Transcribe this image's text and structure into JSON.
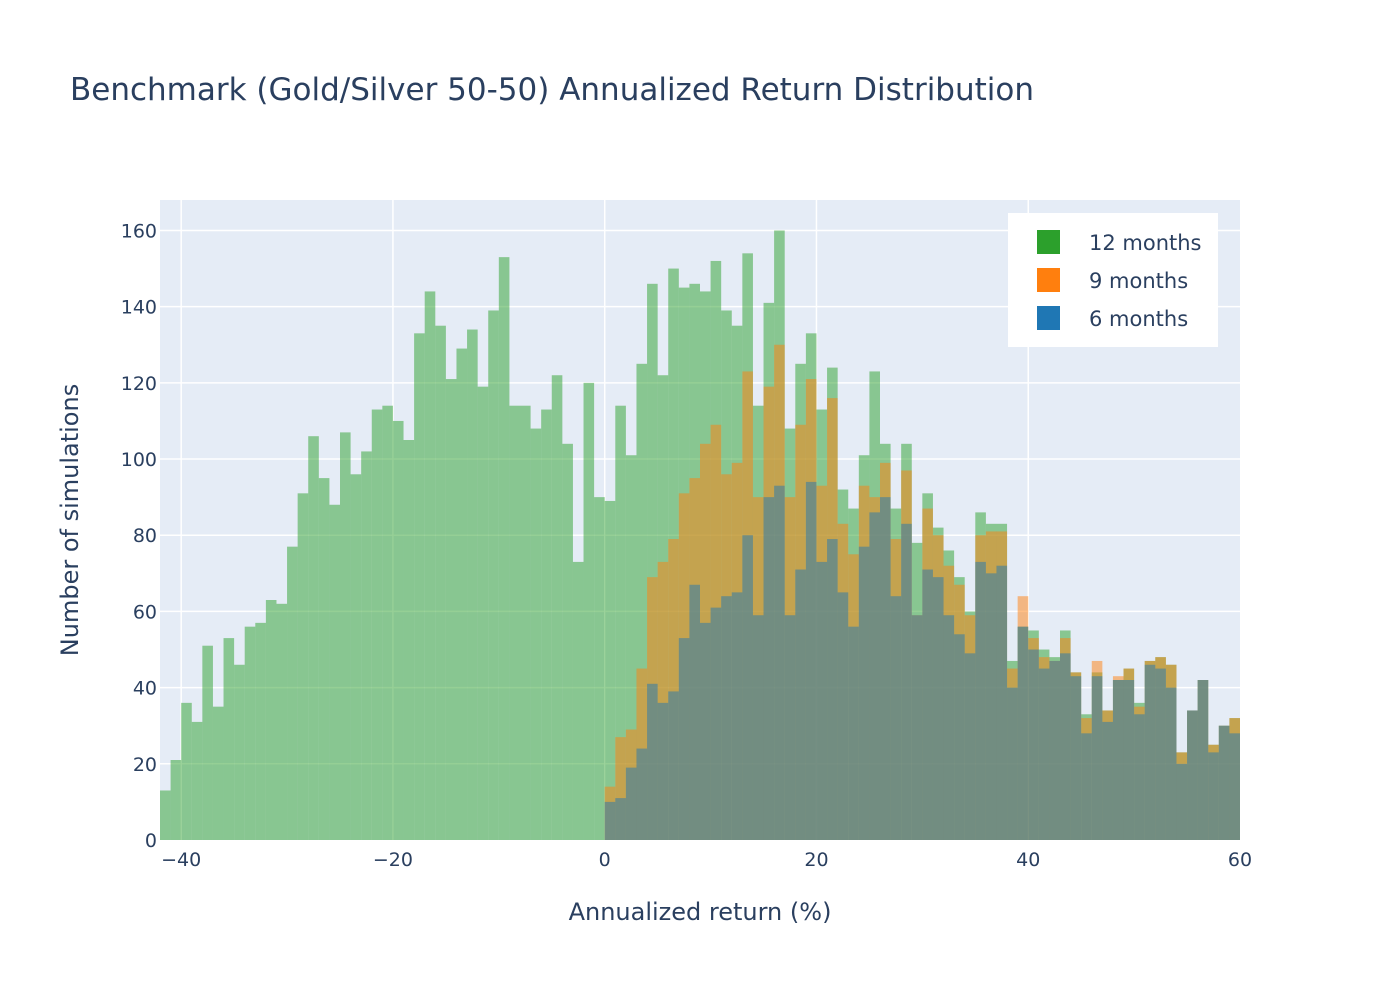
{
  "chart_data": {
    "type": "bar",
    "title": "Benchmark (Gold/Silver 50-50) Annualized Return Distribution",
    "xlabel": "Annualized return (%)",
    "ylabel": "Number of simulations",
    "xlim": [
      -42,
      60
    ],
    "ylim": [
      0,
      168
    ],
    "bin_width": 1,
    "grid": true,
    "overlay": true,
    "legend_position": "top-right",
    "x_ticks": [
      -40,
      -20,
      0,
      20,
      40,
      60
    ],
    "x_tick_labels": [
      "−40",
      "−20",
      "0",
      "20",
      "40",
      "60"
    ],
    "y_ticks": [
      0,
      20,
      40,
      60,
      80,
      100,
      120,
      140,
      160
    ],
    "y_tick_labels": [
      "0",
      "20",
      "40",
      "60",
      "80",
      "100",
      "120",
      "140",
      "160"
    ],
    "series": [
      {
        "name": "12 months",
        "color": "#2ca02c",
        "start": -42,
        "values": [
          13,
          21,
          36,
          31,
          51,
          35,
          53,
          46,
          56,
          57,
          63,
          62,
          77,
          91,
          106,
          95,
          88,
          107,
          96,
          102,
          113,
          114,
          110,
          105,
          133,
          144,
          135,
          121,
          129,
          134,
          119,
          139,
          153,
          114,
          114,
          108,
          113,
          122,
          104,
          73,
          120,
          90,
          89,
          114,
          101,
          125,
          146,
          122,
          150,
          145,
          146,
          144,
          152,
          139,
          135,
          154,
          114,
          141,
          160,
          108,
          125,
          133,
          113,
          124,
          92,
          87,
          101,
          123,
          104,
          87,
          104,
          78,
          91,
          82,
          76,
          69,
          60,
          86,
          83,
          83,
          47,
          56,
          55,
          50,
          48,
          55,
          44,
          33,
          44,
          34,
          42,
          45,
          36,
          47,
          48,
          46,
          23,
          34,
          42,
          25,
          30,
          32
        ]
      },
      {
        "name": "9 months",
        "color": "#ff7f0e",
        "start": 0,
        "values": [
          14,
          27,
          29,
          45,
          69,
          73,
          79,
          91,
          95,
          104,
          109,
          96,
          99,
          123,
          90,
          119,
          130,
          90,
          109,
          121,
          93,
          116,
          83,
          75,
          93,
          90,
          99,
          79,
          97,
          59,
          87,
          80,
          72,
          67,
          59,
          80,
          81,
          81,
          45,
          64,
          53,
          48,
          47,
          53,
          44,
          32,
          47,
          34,
          43,
          45,
          35,
          47,
          48,
          46,
          23,
          34,
          42,
          25,
          30,
          32
        ]
      },
      {
        "name": "6 months",
        "color": "#1f77b4",
        "start": 0,
        "values": [
          10,
          11,
          19,
          24,
          41,
          36,
          39,
          53,
          67,
          57,
          61,
          64,
          65,
          80,
          59,
          90,
          93,
          59,
          71,
          94,
          73,
          79,
          65,
          56,
          77,
          86,
          90,
          64,
          83,
          59,
          71,
          69,
          59,
          54,
          49,
          73,
          70,
          72,
          40,
          56,
          50,
          45,
          47,
          49,
          43,
          28,
          43,
          31,
          42,
          42,
          33,
          46,
          45,
          40,
          20,
          34,
          42,
          23,
          30,
          28
        ]
      }
    ]
  }
}
